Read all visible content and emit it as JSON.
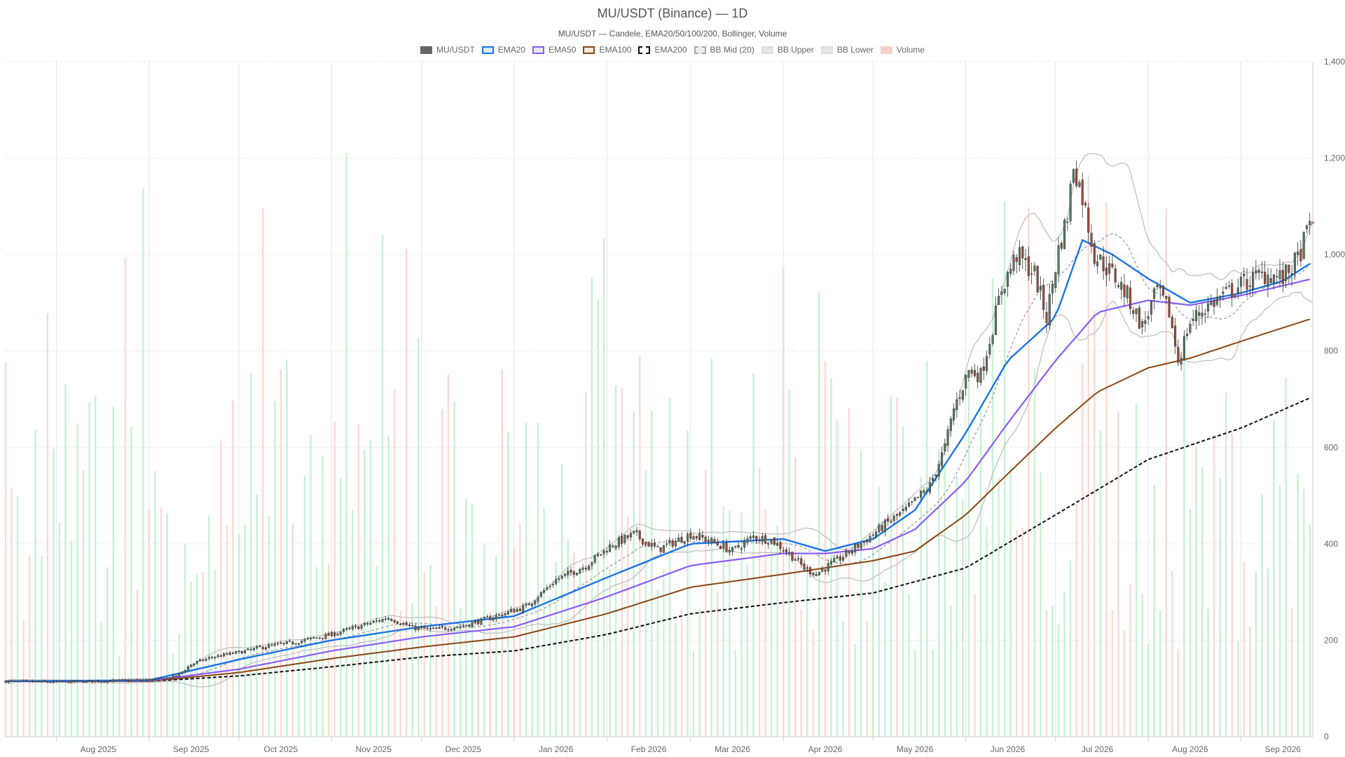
{
  "chart_data": {
    "type": "candlestick",
    "title": "MU/USDT (Binance) — 1D",
    "subtitle": "MU/USDT — Candele, EMA20/50/100/200, Bollinger, Volume",
    "legend": [
      {
        "label": "MU/USDT",
        "key": "candles",
        "fill": "#666666",
        "stroke": "#666666",
        "dash": false
      },
      {
        "label": "EMA20",
        "key": "ema20",
        "fill": "#dbeafe",
        "stroke": "#1a73e8",
        "dash": false
      },
      {
        "label": "EMA50",
        "key": "ema50",
        "fill": "#ede7fb",
        "stroke": "#8b5cf6",
        "dash": false
      },
      {
        "label": "EMA100",
        "key": "ema100",
        "fill": "#f5ebe4",
        "stroke": "#8b4513",
        "dash": false
      },
      {
        "label": "EMA200",
        "key": "ema200",
        "fill": "#ffffff",
        "stroke": "#111111",
        "dash": true
      },
      {
        "label": "BB Mid (20)",
        "key": "bb_mid",
        "fill": "#eeeeee",
        "stroke": "#aaaaaa",
        "dash": true
      },
      {
        "label": "BB Upper",
        "key": "bb_upper",
        "fill": "#e6e6e6",
        "stroke": "#dddddd",
        "dash": false
      },
      {
        "label": "BB Lower",
        "key": "bb_lower",
        "fill": "#e6e6e6",
        "stroke": "#dddddd",
        "dash": false
      },
      {
        "label": "Volume",
        "key": "volume",
        "fill": "#f8cfc8",
        "stroke": "#f8cfc8",
        "dash": false
      }
    ],
    "x_tick_labels": [
      "Aug 2025",
      "Sep 2025",
      "Oct 2025",
      "Nov 2025",
      "Dec 2025",
      "Jan 2026",
      "Feb 2026",
      "Mar 2026",
      "Apr 2026",
      "May 2026",
      "Jun 2026",
      "Jul 2026",
      "Aug 2026",
      "Sep 2026"
    ],
    "x_range": [
      "2025-07-15",
      "2026-09-25"
    ],
    "y_ticks": [
      "0",
      "200",
      "400",
      "600",
      "800",
      "1,000",
      "1,200",
      "1,400"
    ],
    "y_range": [
      0,
      1400
    ],
    "y_axis_side": "right",
    "grid": true,
    "legend_placement": "top-center",
    "colors": {
      "up": "#5a7a62",
      "down": "#9b4a3a",
      "vol_up": "#b8ecc8",
      "vol_down": "#f8cfc8",
      "ema20": "#1a73e8",
      "ema50": "#8b5cf6",
      "ema100": "#8b4513",
      "ema200": "#111111",
      "bb": "#bbbbbb",
      "bb_mid": "#999999",
      "grid": "#e6e6e6"
    },
    "price_path": [
      [
        "2025-07-15",
        115
      ],
      [
        "2025-08-01",
        113
      ],
      [
        "2025-08-20",
        116
      ],
      [
        "2025-09-03",
        118
      ],
      [
        "2025-09-10",
        125
      ],
      [
        "2025-09-15",
        150
      ],
      [
        "2025-09-22",
        165
      ],
      [
        "2025-10-01",
        175
      ],
      [
        "2025-10-10",
        187
      ],
      [
        "2025-10-20",
        196
      ],
      [
        "2025-11-01",
        212
      ],
      [
        "2025-11-10",
        228
      ],
      [
        "2025-11-20",
        247
      ],
      [
        "2025-11-28",
        226
      ],
      [
        "2025-12-05",
        222
      ],
      [
        "2025-12-15",
        230
      ],
      [
        "2025-12-25",
        248
      ],
      [
        "2026-01-05",
        270
      ],
      [
        "2026-01-15",
        325
      ],
      [
        "2026-01-25",
        355
      ],
      [
        "2026-02-02",
        395
      ],
      [
        "2026-02-10",
        420
      ],
      [
        "2026-02-18",
        388
      ],
      [
        "2026-03-01",
        420
      ],
      [
        "2026-03-08",
        405
      ],
      [
        "2026-03-15",
        385
      ],
      [
        "2026-03-22",
        415
      ],
      [
        "2026-03-28",
        408
      ],
      [
        "2026-04-03",
        380
      ],
      [
        "2026-04-08",
        350
      ],
      [
        "2026-04-12",
        338
      ],
      [
        "2026-04-20",
        370
      ],
      [
        "2026-04-28",
        405
      ],
      [
        "2026-05-05",
        440
      ],
      [
        "2026-05-12",
        470
      ],
      [
        "2026-05-20",
        520
      ],
      [
        "2026-05-25",
        600
      ],
      [
        "2026-05-28",
        680
      ],
      [
        "2026-06-02",
        760
      ],
      [
        "2026-06-06",
        750
      ],
      [
        "2026-06-10",
        850
      ],
      [
        "2026-06-13",
        930
      ],
      [
        "2026-06-18",
        1000
      ],
      [
        "2026-06-24",
        960
      ],
      [
        "2026-06-28",
        870
      ],
      [
        "2026-07-02",
        1010
      ],
      [
        "2026-07-05",
        1080
      ],
      [
        "2026-07-07",
        1190
      ],
      [
        "2026-07-10",
        1120
      ],
      [
        "2026-07-14",
        1000
      ],
      [
        "2026-07-20",
        960
      ],
      [
        "2026-07-25",
        915
      ],
      [
        "2026-07-30",
        850
      ],
      [
        "2026-08-04",
        925
      ],
      [
        "2026-08-08",
        880
      ],
      [
        "2026-08-11",
        780
      ],
      [
        "2026-08-15",
        860
      ],
      [
        "2026-08-20",
        890
      ],
      [
        "2026-08-25",
        910
      ],
      [
        "2026-08-30",
        930
      ],
      [
        "2026-09-05",
        950
      ],
      [
        "2026-09-10",
        960
      ],
      [
        "2026-09-15",
        950
      ],
      [
        "2026-09-20",
        990
      ],
      [
        "2026-09-25",
        1080
      ]
    ],
    "ema20": [
      [
        "2025-07-15",
        115
      ],
      [
        "2025-09-01",
        117
      ],
      [
        "2025-10-01",
        160
      ],
      [
        "2025-11-01",
        200
      ],
      [
        "2025-12-01",
        228
      ],
      [
        "2026-01-01",
        250
      ],
      [
        "2026-02-01",
        330
      ],
      [
        "2026-03-01",
        400
      ],
      [
        "2026-04-01",
        410
      ],
      [
        "2026-04-15",
        385
      ],
      [
        "2026-05-01",
        410
      ],
      [
        "2026-05-15",
        470
      ],
      [
        "2026-06-01",
        630
      ],
      [
        "2026-06-15",
        780
      ],
      [
        "2026-07-01",
        870
      ],
      [
        "2026-07-10",
        1030
      ],
      [
        "2026-07-20",
        1000
      ],
      [
        "2026-08-01",
        950
      ],
      [
        "2026-08-15",
        900
      ],
      [
        "2026-09-01",
        920
      ],
      [
        "2026-09-15",
        945
      ],
      [
        "2026-09-25",
        985
      ]
    ],
    "ema50": [
      [
        "2025-07-15",
        115
      ],
      [
        "2025-09-01",
        116
      ],
      [
        "2025-10-01",
        140
      ],
      [
        "2025-11-01",
        178
      ],
      [
        "2025-12-01",
        207
      ],
      [
        "2026-01-01",
        228
      ],
      [
        "2026-02-01",
        290
      ],
      [
        "2026-03-01",
        355
      ],
      [
        "2026-04-01",
        380
      ],
      [
        "2026-04-15",
        380
      ],
      [
        "2026-05-01",
        390
      ],
      [
        "2026-05-15",
        430
      ],
      [
        "2026-06-01",
        530
      ],
      [
        "2026-06-15",
        650
      ],
      [
        "2026-07-01",
        780
      ],
      [
        "2026-07-15",
        880
      ],
      [
        "2026-08-01",
        905
      ],
      [
        "2026-08-15",
        895
      ],
      [
        "2026-09-01",
        915
      ],
      [
        "2026-09-25",
        950
      ]
    ],
    "ema100": [
      [
        "2025-07-15",
        115
      ],
      [
        "2025-09-01",
        115
      ],
      [
        "2025-10-01",
        133
      ],
      [
        "2025-11-01",
        162
      ],
      [
        "2025-12-01",
        186
      ],
      [
        "2026-01-01",
        207
      ],
      [
        "2026-02-01",
        255
      ],
      [
        "2026-03-01",
        310
      ],
      [
        "2026-04-01",
        337
      ],
      [
        "2026-05-01",
        365
      ],
      [
        "2026-05-15",
        385
      ],
      [
        "2026-06-01",
        460
      ],
      [
        "2026-06-15",
        545
      ],
      [
        "2026-07-01",
        640
      ],
      [
        "2026-07-15",
        715
      ],
      [
        "2026-08-01",
        765
      ],
      [
        "2026-08-15",
        785
      ],
      [
        "2026-09-01",
        820
      ],
      [
        "2026-09-25",
        868
      ]
    ],
    "ema200": [
      [
        "2025-07-15",
        115
      ],
      [
        "2025-09-01",
        115
      ],
      [
        "2025-10-01",
        126
      ],
      [
        "2025-11-01",
        145
      ],
      [
        "2025-12-01",
        165
      ],
      [
        "2026-01-01",
        178
      ],
      [
        "2026-02-01",
        212
      ],
      [
        "2026-03-01",
        255
      ],
      [
        "2026-04-01",
        278
      ],
      [
        "2026-05-01",
        298
      ],
      [
        "2026-06-01",
        350
      ],
      [
        "2026-07-01",
        460
      ],
      [
        "2026-08-01",
        575
      ],
      [
        "2026-09-01",
        640
      ],
      [
        "2026-09-25",
        705
      ]
    ]
  }
}
